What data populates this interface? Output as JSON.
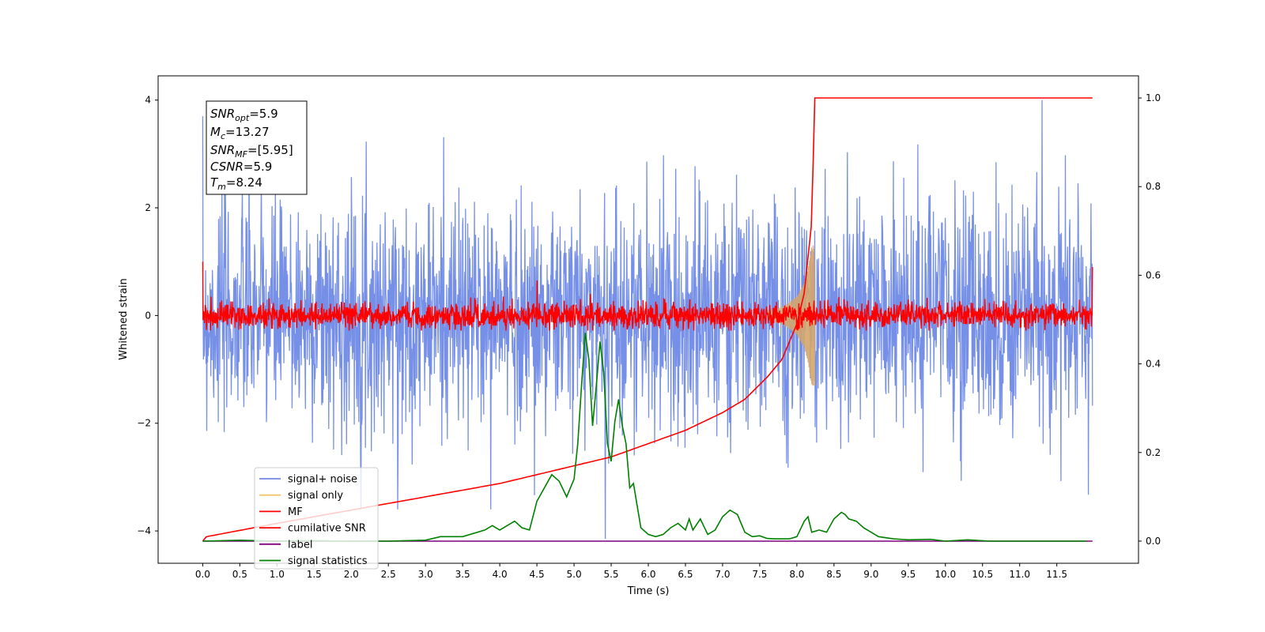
{
  "chart_data": {
    "type": "line",
    "xlabel": "Time (s)",
    "ylabel": "Whitened strain",
    "xlim": [
      -0.6,
      12.6
    ],
    "ylim": [
      -4.6,
      4.45
    ],
    "y2lim": [
      -0.05,
      1.05
    ],
    "x_ticks": [
      0.0,
      0.5,
      1.0,
      1.5,
      2.0,
      2.5,
      3.0,
      3.5,
      4.0,
      4.5,
      5.0,
      5.5,
      6.0,
      6.5,
      7.0,
      7.5,
      8.0,
      8.5,
      9.0,
      9.5,
      10.0,
      10.5,
      11.0,
      11.5
    ],
    "x_tick_labels": [
      "0.0",
      "0.5",
      "1.0",
      "1.5",
      "2.0",
      "2.5",
      "3.0",
      "3.5",
      "4.0",
      "4.5",
      "5.0",
      "5.5",
      "6.0",
      "6.5",
      "7.0",
      "7.5",
      "8.0",
      "8.5",
      "9.0",
      "9.5",
      "10.0",
      "10.5",
      "11.0",
      "11.5"
    ],
    "y_ticks": [
      -4,
      -2,
      0,
      2,
      4
    ],
    "y_tick_labels": [
      "−4",
      "−2",
      "0",
      "2",
      "4"
    ],
    "y2_ticks": [
      0.0,
      0.2,
      0.4,
      0.6,
      0.8,
      1.0
    ],
    "y2_tick_labels": [
      "0.0",
      "0.2",
      "0.4",
      "0.6",
      "0.8",
      "1.0"
    ],
    "grid": false,
    "legend_position": "lower-left",
    "legend": [
      {
        "label": "signal+ noise",
        "color": "#6f8ae6"
      },
      {
        "label": "signal only",
        "color": "#f5c56a"
      },
      {
        "label": "MF",
        "color": "#ff0000"
      },
      {
        "label": "cumilative SNR",
        "color": "#ff0000"
      },
      {
        "label": "label",
        "color": "#800080"
      },
      {
        "label": "signal statistics",
        "color": "#008000"
      }
    ],
    "annotation": {
      "snr_opt": {
        "name": "SNR",
        "sub": "opt",
        "value": "=5.9"
      },
      "mc": {
        "name": "M",
        "sub": "c",
        "value": "=13.27"
      },
      "snr_mf": {
        "name": "SNR",
        "sub": "MF",
        "value": "=[5.95]"
      },
      "csnr": {
        "name": "CSNR",
        "value": "=5.9"
      },
      "tm": {
        "name": "T",
        "sub": "m",
        "value": "=8.24"
      }
    },
    "series": [
      {
        "name": "signal+ noise",
        "axis": "left",
        "color": "#6f8ae6",
        "x_range": [
          0,
          11.98
        ],
        "sigma": 1.0,
        "max": 4.0,
        "min": -4.15
      },
      {
        "name": "signal only",
        "axis": "left",
        "color": "#f5c56a",
        "merger_time": 8.24,
        "x": [
          7.6,
          7.8,
          8.0,
          8.1,
          8.15,
          8.2,
          8.24
        ],
        "envelope": [
          0.08,
          0.15,
          0.35,
          0.6,
          0.85,
          1.3,
          1.3
        ]
      },
      {
        "name": "MF",
        "axis": "left",
        "color": "#ff0000",
        "x_range": [
          0,
          11.98
        ],
        "sigma": 0.12,
        "max": 0.65,
        "min": -0.3
      },
      {
        "name": "cumilative SNR",
        "axis": "right",
        "color": "#ff0000",
        "x": [
          0.0,
          0.05,
          1.0,
          2.0,
          3.0,
          4.0,
          5.0,
          5.5,
          6.0,
          6.5,
          7.0,
          7.3,
          7.6,
          7.8,
          8.0,
          8.1,
          8.2,
          8.24,
          11.98
        ],
        "y": [
          0.0,
          0.01,
          0.04,
          0.07,
          0.1,
          0.13,
          0.17,
          0.19,
          0.22,
          0.25,
          0.29,
          0.32,
          0.37,
          0.41,
          0.49,
          0.56,
          0.72,
          1.0,
          1.0
        ]
      },
      {
        "name": "label",
        "axis": "right",
        "color": "#800080",
        "x": [
          0.0,
          11.98
        ],
        "y": [
          0.0,
          0.0
        ]
      },
      {
        "name": "signal statistics",
        "axis": "right",
        "color": "#008000",
        "x": [
          0.0,
          0.5,
          1.0,
          1.5,
          2.0,
          2.5,
          3.0,
          3.2,
          3.5,
          3.8,
          3.9,
          4.0,
          4.1,
          4.2,
          4.3,
          4.4,
          4.5,
          4.6,
          4.7,
          4.8,
          4.9,
          5.0,
          5.05,
          5.1,
          5.15,
          5.2,
          5.25,
          5.3,
          5.35,
          5.4,
          5.45,
          5.5,
          5.55,
          5.6,
          5.65,
          5.7,
          5.75,
          5.8,
          5.85,
          5.9,
          6.0,
          6.1,
          6.2,
          6.3,
          6.4,
          6.5,
          6.55,
          6.6,
          6.7,
          6.8,
          6.9,
          7.0,
          7.1,
          7.2,
          7.3,
          7.4,
          7.5,
          7.6,
          7.7,
          7.8,
          7.9,
          8.0,
          8.1,
          8.15,
          8.2,
          8.3,
          8.4,
          8.5,
          8.6,
          8.65,
          8.7,
          8.8,
          8.9,
          9.0,
          9.1,
          9.3,
          9.5,
          9.8,
          10.0,
          10.3,
          10.6,
          11.0,
          11.5,
          11.9
        ],
        "y": [
          0.0,
          0.002,
          0.0,
          0.001,
          0.0,
          0.0,
          0.002,
          0.01,
          0.01,
          0.025,
          0.035,
          0.025,
          0.035,
          0.045,
          0.03,
          0.025,
          0.09,
          0.12,
          0.15,
          0.135,
          0.1,
          0.14,
          0.22,
          0.35,
          0.47,
          0.41,
          0.26,
          0.35,
          0.45,
          0.38,
          0.22,
          0.18,
          0.27,
          0.32,
          0.26,
          0.22,
          0.12,
          0.13,
          0.08,
          0.03,
          0.015,
          0.01,
          0.015,
          0.03,
          0.04,
          0.025,
          0.05,
          0.025,
          0.05,
          0.015,
          0.025,
          0.055,
          0.07,
          0.06,
          0.02,
          0.01,
          0.012,
          0.006,
          0.005,
          0.005,
          0.005,
          0.01,
          0.045,
          0.055,
          0.02,
          0.025,
          0.02,
          0.05,
          0.065,
          0.06,
          0.05,
          0.045,
          0.03,
          0.02,
          0.01,
          0.005,
          0.003,
          0.004,
          0.0,
          0.003,
          0.0,
          0.0,
          0.0,
          0.0
        ]
      }
    ]
  }
}
